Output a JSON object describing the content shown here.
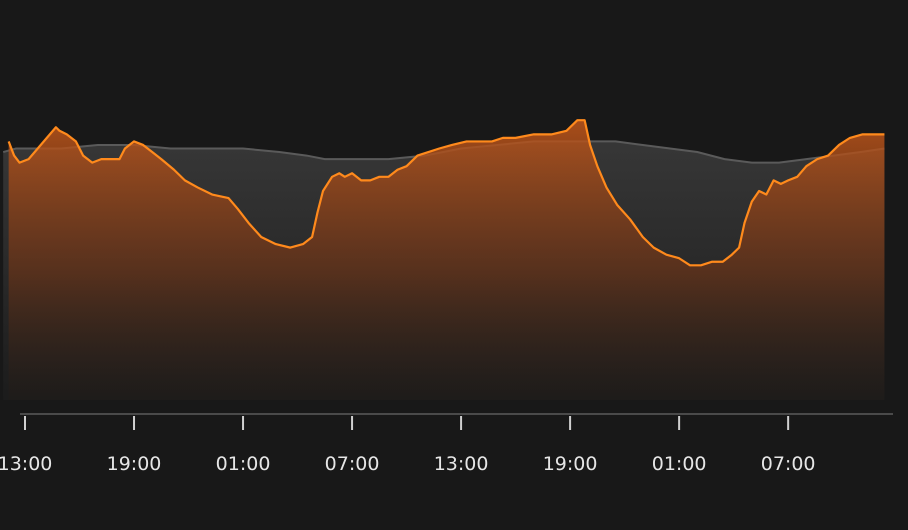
{
  "chart_data": {
    "type": "area",
    "title": "",
    "xlabel": "",
    "ylabel": "",
    "x_unit": "hours",
    "ylim": [
      0,
      100
    ],
    "grid": false,
    "x_ticks": [
      {
        "t": 0,
        "label": "13:00"
      },
      {
        "t": 6,
        "label": "19:00"
      },
      {
        "t": 12,
        "label": "01:00"
      },
      {
        "t": 18,
        "label": "07:00"
      },
      {
        "t": 24,
        "label": "13:00"
      },
      {
        "t": 30,
        "label": "19:00"
      },
      {
        "t": 36,
        "label": "01:00"
      },
      {
        "t": 42,
        "label": "07:00"
      }
    ],
    "x_range": [
      -1.2,
      47.5
    ],
    "series": [
      {
        "color": "#ff8a1c",
        "points": [
          [
            -0.9,
            77
          ],
          [
            -0.6,
            73
          ],
          [
            -0.3,
            71
          ],
          [
            0.2,
            72
          ],
          [
            0.7,
            75
          ],
          [
            1.2,
            78
          ],
          [
            1.7,
            81
          ],
          [
            1.9,
            80
          ],
          [
            2.3,
            79
          ],
          [
            2.8,
            77
          ],
          [
            3.2,
            73
          ],
          [
            3.7,
            71
          ],
          [
            4.2,
            72
          ],
          [
            4.8,
            72
          ],
          [
            5.2,
            72
          ],
          [
            5.5,
            75
          ],
          [
            6.0,
            77
          ],
          [
            6.5,
            76
          ],
          [
            7.0,
            74
          ],
          [
            7.5,
            72
          ],
          [
            8.2,
            69
          ],
          [
            8.8,
            66
          ],
          [
            9.5,
            64
          ],
          [
            10.3,
            62
          ],
          [
            11.2,
            61
          ],
          [
            11.7,
            58
          ],
          [
            12.3,
            54
          ],
          [
            13.0,
            50
          ],
          [
            13.8,
            48
          ],
          [
            14.6,
            47
          ],
          [
            15.3,
            48
          ],
          [
            15.8,
            50
          ],
          [
            16.1,
            57
          ],
          [
            16.4,
            63
          ],
          [
            16.9,
            67
          ],
          [
            17.3,
            68
          ],
          [
            17.6,
            67
          ],
          [
            18.0,
            68
          ],
          [
            18.5,
            66
          ],
          [
            19.0,
            66
          ],
          [
            19.5,
            67
          ],
          [
            20.0,
            67
          ],
          [
            20.5,
            69
          ],
          [
            21.0,
            70
          ],
          [
            21.6,
            73
          ],
          [
            22.2,
            74
          ],
          [
            22.8,
            75
          ],
          [
            23.5,
            76
          ],
          [
            24.3,
            77
          ],
          [
            25.0,
            77
          ],
          [
            25.7,
            77
          ],
          [
            26.3,
            78
          ],
          [
            27.0,
            78
          ],
          [
            28.0,
            79
          ],
          [
            29.0,
            79
          ],
          [
            29.8,
            80
          ],
          [
            30.4,
            83
          ],
          [
            30.8,
            83
          ],
          [
            31.1,
            76
          ],
          [
            31.5,
            70
          ],
          [
            32.0,
            64
          ],
          [
            32.6,
            59
          ],
          [
            33.3,
            55
          ],
          [
            34.0,
            50
          ],
          [
            34.6,
            47
          ],
          [
            35.3,
            45
          ],
          [
            36.0,
            44
          ],
          [
            36.6,
            42
          ],
          [
            37.2,
            42
          ],
          [
            37.8,
            43
          ],
          [
            38.4,
            43
          ],
          [
            38.9,
            45
          ],
          [
            39.3,
            47
          ],
          [
            39.6,
            54
          ],
          [
            40.0,
            60
          ],
          [
            40.4,
            63
          ],
          [
            40.8,
            62
          ],
          [
            41.2,
            66
          ],
          [
            41.6,
            65
          ],
          [
            42.0,
            66
          ],
          [
            42.5,
            67
          ],
          [
            43.0,
            70
          ],
          [
            43.6,
            72
          ],
          [
            44.2,
            73
          ],
          [
            44.8,
            76
          ],
          [
            45.4,
            78
          ],
          [
            46.1,
            79
          ],
          [
            46.7,
            79
          ],
          [
            47.3,
            79
          ]
        ]
      },
      {
        "color": "#5a5a5a",
        "points": [
          [
            -1.2,
            74
          ],
          [
            -0.5,
            75
          ],
          [
            0.5,
            75
          ],
          [
            2.0,
            75
          ],
          [
            4.0,
            76
          ],
          [
            6.0,
            76
          ],
          [
            8.0,
            75
          ],
          [
            10.0,
            75
          ],
          [
            12.0,
            75
          ],
          [
            14.0,
            74
          ],
          [
            15.5,
            73
          ],
          [
            16.5,
            72
          ],
          [
            18.0,
            72
          ],
          [
            20.0,
            72
          ],
          [
            22.0,
            73
          ],
          [
            24.0,
            75
          ],
          [
            26.0,
            76
          ],
          [
            28.0,
            77
          ],
          [
            29.5,
            77
          ],
          [
            31.0,
            77
          ],
          [
            32.5,
            77
          ],
          [
            34.0,
            76
          ],
          [
            35.5,
            75
          ],
          [
            37.0,
            74
          ],
          [
            38.5,
            72
          ],
          [
            40.0,
            71
          ],
          [
            41.5,
            71
          ],
          [
            43.0,
            72
          ],
          [
            44.5,
            73
          ],
          [
            46.0,
            74
          ],
          [
            47.3,
            75
          ]
        ]
      }
    ]
  }
}
